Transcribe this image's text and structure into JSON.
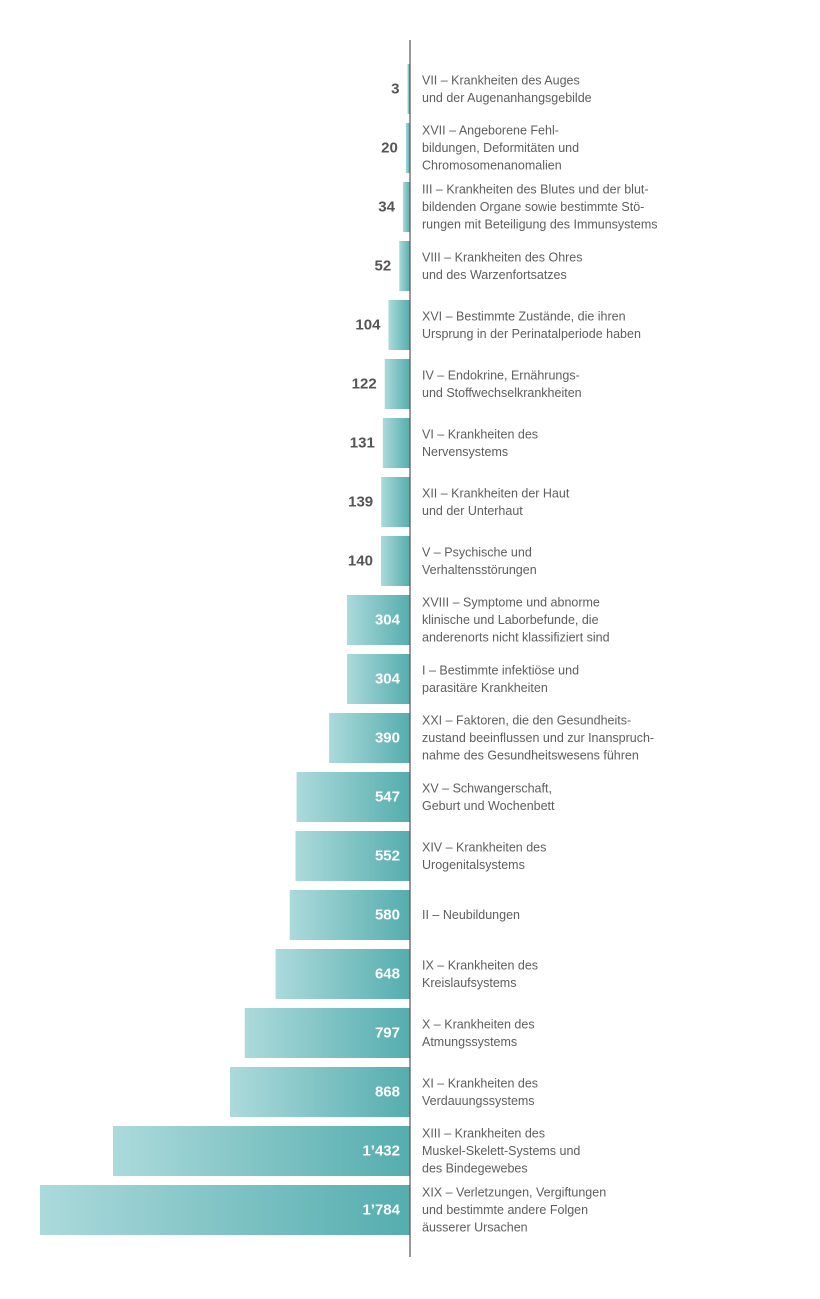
{
  "chart_data": {
    "type": "bar",
    "orientation": "horizontal",
    "categories": [
      [
        "VII – Krankheiten des Auges",
        "und der Augenanhangsgebilde"
      ],
      [
        "XVII – Angeborene Fehl-",
        "bildungen, Deformitäten und",
        "Chromosomenanomalien"
      ],
      [
        "III – Krankheiten des Blutes und der blut-",
        "bildenden Organe sowie bestimmte Stö-",
        "rungen mit Beteiligung des Immunsystems"
      ],
      [
        "VIII – Krankheiten des Ohres",
        "und des Warzenfortsatzes"
      ],
      [
        "XVI – Bestimmte Zustände, die ihren",
        "Ursprung in der Perinatalperiode haben"
      ],
      [
        "IV – Endokrine, Ernährungs-",
        "und Stoffwechselkrankheiten"
      ],
      [
        "VI – Krankheiten des",
        "Nervensystems"
      ],
      [
        "XII – Krankheiten der Haut",
        "und der Unterhaut"
      ],
      [
        "V – Psychische und",
        "Verhaltensstörungen"
      ],
      [
        "XVIII – Symptome und abnorme",
        "klinische und Laborbefunde, die",
        "anderenorts nicht klassifiziert sind"
      ],
      [
        "I – Bestimmte infektiöse und",
        "parasitäre Krankheiten"
      ],
      [
        "XXI – Faktoren, die den Gesundheits-",
        "zustand beeinflussen und zur Inanspruch-",
        "nahme des Gesundheitswesens führen"
      ],
      [
        "XV – Schwangerschaft,",
        "Geburt und Wochenbett"
      ],
      [
        "XIV – Krankheiten des",
        "Urogenitalsystems"
      ],
      [
        "II – Neubildungen"
      ],
      [
        "IX – Krankheiten des",
        "Kreislaufsystems"
      ],
      [
        "X – Krankheiten des",
        "Atmungssystems"
      ],
      [
        "XI – Krankheiten des",
        "Verdauungssystems"
      ],
      [
        "XIII – Krankheiten des",
        "Muskel-Skelett-Systems und",
        "des Bindegewebes"
      ],
      [
        "XIX – Verletzungen, Vergiftungen",
        "und bestimmte andere Folgen",
        "äusserer Ursachen"
      ]
    ],
    "values": [
      3,
      20,
      34,
      52,
      104,
      122,
      131,
      139,
      140,
      304,
      304,
      390,
      547,
      552,
      580,
      648,
      797,
      868,
      1432,
      1784
    ],
    "value_labels": [
      "3",
      "20",
      "34",
      "52",
      "104",
      "122",
      "131",
      "139",
      "140",
      "304",
      "304",
      "390",
      "547",
      "552",
      "580",
      "648",
      "797",
      "868",
      "1’432",
      "1’784"
    ],
    "title": "",
    "xlabel": "",
    "ylabel": "",
    "xlim": [
      0,
      1784
    ],
    "bar_direction": "leftward from central axis",
    "legend": "none",
    "grid": false,
    "colors": {
      "bar_light": "#acdadb",
      "bar_dark": "#55adae",
      "value_inside": "#ffffff",
      "value_outside": "#555555",
      "label_text": "#5e5e5e",
      "axis": "#555555"
    }
  }
}
